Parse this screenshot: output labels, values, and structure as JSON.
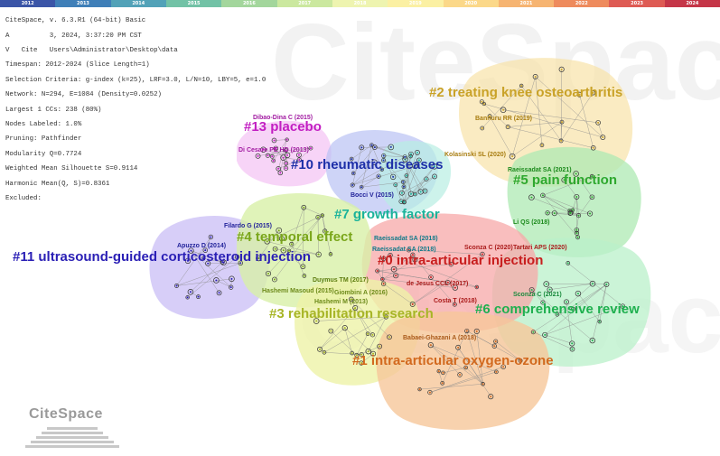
{
  "timeline": {
    "years": [
      "2012",
      "2013",
      "2014",
      "2015",
      "2016",
      "2017",
      "2018",
      "2019",
      "2020",
      "2021",
      "2022",
      "2023",
      "2024"
    ],
    "colors": [
      "#3b55a7",
      "#3f7fb8",
      "#52a2b8",
      "#72c2a6",
      "#a3d69c",
      "#cbe89f",
      "#eef4b0",
      "#fbf0a3",
      "#fbd889",
      "#f6b471",
      "#ee8b5d",
      "#de5b54",
      "#c53648"
    ]
  },
  "meta": {
    "line1": "CiteSpace, v. 6.3.R1 (64-bit) Basic",
    "line2": "A          3, 2024, 3:37:20 PM CST",
    "line3": "V   Cite   Users\\Administrator\\Desktop\\data",
    "line4": "Timespan: 2012-2024 (Slice Length=1)",
    "line5": "Selection Criteria: g-index (k=25), LRF=3.0, L/N=10, LBY=5, e=1.0",
    "line6": "Network: N=294, E=1084 (Density=0.0252)",
    "line7": "Largest 1 CCs: 238 (80%)",
    "line8": "Nodes Labeled: 1.0%",
    "line9": "Pruning: Pathfinder",
    "line10": "Modularity Q=0.7724",
    "line11": "Weighted Mean Silhouette S=0.9114",
    "line12": "Harmonic Mean(Q, S)=0.8361",
    "line13": "Excluded:"
  },
  "clusters": [
    {
      "label": "#0 intra-articular injection",
      "color": "#c81e1e",
      "fill": "#f7a8a8"
    },
    {
      "label": "#1 intra-articular oxygen-ozone",
      "color": "#d2691e",
      "fill": "#f6c79a"
    },
    {
      "label": "#2 treating knee osteoarthritis",
      "color": "#c9a227",
      "fill": "#f8e2a8"
    },
    {
      "label": "#3 rehabilitation research",
      "color": "#a7b526",
      "fill": "#eef3a8"
    },
    {
      "label": "#4 temporal effect",
      "color": "#7aa61a",
      "fill": "#d8f0a8"
    },
    {
      "label": "#5 pain function",
      "color": "#2ea82e",
      "fill": "#aee9b3"
    },
    {
      "label": "#6 comprehensive review",
      "color": "#1fb04f",
      "fill": "#b9f0c9"
    },
    {
      "label": "#7 growth factor",
      "color": "#1bb39a",
      "fill": "#b8eee3"
    },
    {
      "label": "#10 rheumatic diseases",
      "color": "#1d2fa8",
      "fill": "#b9c2f3"
    },
    {
      "label": "#11 ultrasound-guided corticosteroid injection",
      "color": "#2a1fb5",
      "fill": "#c9bdf5"
    },
    {
      "label": "#13 placebo",
      "color": "#c21fc2",
      "fill": "#f3bdf3"
    }
  ],
  "authors": [
    "Dibao-Dina C (2015)",
    "Di Cesare PE HD (2013)",
    "Bannuru RR (2019)",
    "Kolasinski SL (2020)",
    "Raeissadat SA (2021)",
    "Bocci V (2015)",
    "Filardo G (2015)",
    "Li QS (2018)",
    "Raeissadat SA (2018)",
    "Raeissadat SA (2018)",
    "Sconza C (2020)",
    "Tartari APS (2020)",
    "Apuzzo D (2014)",
    "Duymus TM (2017)",
    "de Jesus CCL (2017)",
    "Hashemi Masoud (2015)",
    "Giombini A (2016)",
    "Hashemi M (2013)",
    "Costa T (2018)",
    "Sconza C (2021)",
    "Babaei-Ghazani A (2018)"
  ],
  "logo": {
    "text": "CiteSpace"
  },
  "watermark": {
    "text": "CiteSpace"
  }
}
